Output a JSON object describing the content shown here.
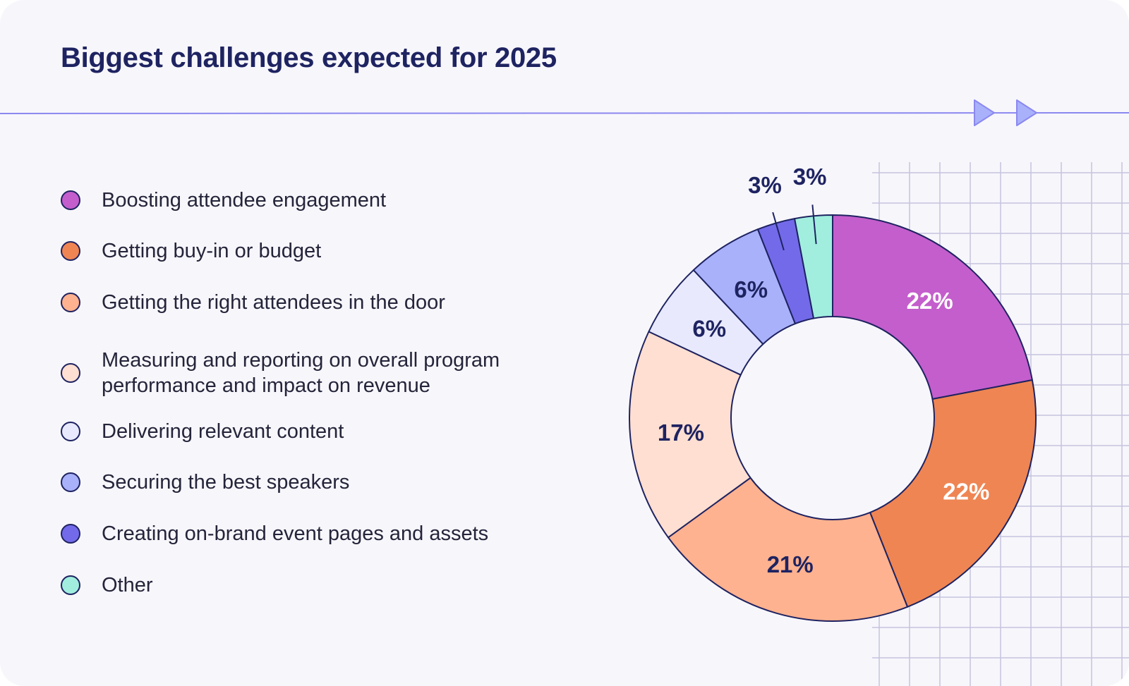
{
  "title": "Biggest challenges expected for 2025",
  "colors": {
    "background": "#f7f6fb",
    "title": "#1e2361",
    "outline": "#1e2361",
    "accent": "#8b88f0",
    "grid": "#c5c4de"
  },
  "decorations": {
    "divider_icons": [
      "play-arrow-icon",
      "play-arrow-icon"
    ]
  },
  "legend": [
    {
      "label": "Boosting attendee engagement",
      "color": "#c45ecc"
    },
    {
      "label": "Getting buy-in or budget",
      "color": "#ef8553"
    },
    {
      "label": "Getting the right attendees in the door",
      "color": "#ffb28f"
    },
    {
      "label": "Measuring and reporting on overall program performance and impact on revenue",
      "color": "#ffdfd1"
    },
    {
      "label": "Delivering relevant content",
      "color": "#e8e9fc"
    },
    {
      "label": "Securing the best speakers",
      "color": "#a8b1fa"
    },
    {
      "label": "Creating on-brand event pages and assets",
      "color": "#736aea"
    },
    {
      "label": "Other",
      "color": "#a1eede"
    }
  ],
  "chart_data": {
    "type": "pie",
    "subtype": "donut",
    "title": "Biggest challenges expected for 2025",
    "categories": [
      "Boosting attendee engagement",
      "Getting buy-in or budget",
      "Getting the right attendees in the door",
      "Measuring and reporting on overall program performance and impact on revenue",
      "Delivering relevant content",
      "Securing the best speakers",
      "Creating on-brand event pages and assets",
      "Other"
    ],
    "values": [
      22,
      22,
      21,
      17,
      6,
      6,
      3,
      3
    ],
    "value_labels": [
      "22%",
      "22%",
      "21%",
      "17%",
      "6%",
      "6%",
      "3%",
      "3%"
    ],
    "colors": [
      "#c45ecc",
      "#ef8553",
      "#ffb28f",
      "#ffdfd1",
      "#e8e9fc",
      "#a8b1fa",
      "#736aea",
      "#a1eede"
    ],
    "label_colors": [
      "#ffffff",
      "#ffffff",
      "#1e2361",
      "#1e2361",
      "#1e2361",
      "#1e2361",
      "#1e2361",
      "#1e2361"
    ],
    "outside_labels": [
      false,
      false,
      false,
      false,
      false,
      false,
      true,
      true
    ],
    "legend_position": "left"
  }
}
